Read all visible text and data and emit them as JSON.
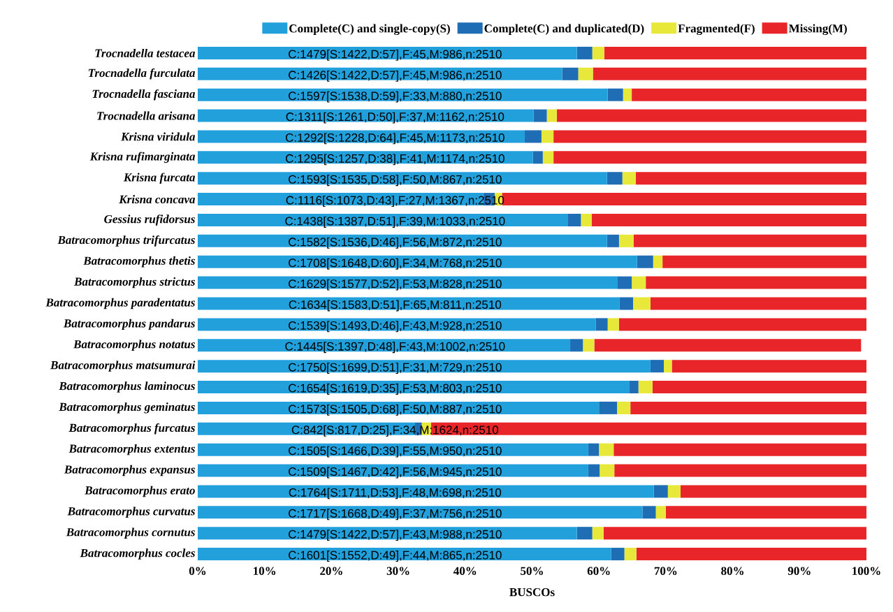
{
  "chart_data": {
    "type": "bar",
    "orientation": "horizontal",
    "stacked": true,
    "xlabel": "BUSCOs",
    "legend": "top",
    "categories": [
      "Trocnadella testacea",
      "Trocnadella furculata",
      "Trocnadella fasciana",
      "Trocnadella arisana",
      "Krisna viridula",
      "Krisna rufimarginata",
      "Krisna furcata",
      "Krisna concava",
      "Gessius rufidorsus",
      "Batracomorphus trifurcatus",
      "Batracomorphus thetis",
      "Batracomorphus strictus",
      "Batracomorphus paradentatus",
      "Batracomorphus pandarus",
      "Batracomorphus notatus",
      "Batracomorphus matsumurai",
      "Batracomorphus laminocus",
      "Batracomorphus geminatus",
      "Batracomorphus furcatus",
      "Batracomorphus extentus",
      "Batracomorphus expansus",
      "Batracomorphus erato",
      "Batracomorphus curvatus",
      "Batracomorphus cornutus",
      "Batracomorphus cocles"
    ],
    "series": [
      {
        "name": "Complete(C) and single-copy(S)",
        "color": "#22a0dc",
        "values": [
          56.7,
          54.5,
          61.3,
          50.2,
          48.9,
          50.1,
          61.2,
          42.7,
          55.3,
          61.2,
          65.7,
          62.8,
          63.1,
          59.5,
          55.7,
          67.7,
          64.5,
          60.0,
          32.5,
          58.4,
          58.4,
          68.2,
          66.5,
          56.7,
          61.8
        ]
      },
      {
        "name": "Complete(C) and duplicated(D)",
        "color": "#1f6db5",
        "values": [
          2.3,
          2.4,
          2.3,
          2.0,
          2.5,
          1.5,
          2.3,
          1.7,
          2.0,
          1.8,
          2.4,
          2.1,
          2.0,
          1.8,
          1.9,
          2.0,
          1.4,
          2.7,
          1.0,
          1.6,
          1.7,
          2.1,
          2.0,
          2.3,
          2.0
        ]
      },
      {
        "name": "Fragmented(F)",
        "color": "#e8e83a",
        "values": [
          1.8,
          2.2,
          1.3,
          1.5,
          1.8,
          1.6,
          2.0,
          1.1,
          1.6,
          2.2,
          1.4,
          2.1,
          2.6,
          1.7,
          1.7,
          1.2,
          2.1,
          2.0,
          1.4,
          2.2,
          2.2,
          1.9,
          1.5,
          1.7,
          1.8
        ]
      },
      {
        "name": "Missing(M)",
        "color": "#e8262a",
        "values": [
          39.2,
          40.9,
          35.1,
          46.3,
          46.8,
          46.8,
          34.5,
          54.5,
          41.1,
          34.8,
          30.5,
          33.0,
          32.3,
          37.0,
          39.9,
          29.1,
          32.0,
          35.3,
          65.1,
          37.8,
          37.7,
          27.8,
          30.0,
          39.3,
          34.4
        ]
      }
    ],
    "xlim": [
      0,
      100
    ],
    "xticks": [
      {
        "value": 0,
        "label": "0%"
      },
      {
        "value": 10,
        "label": "10%"
      },
      {
        "value": 20,
        "label": "20%"
      },
      {
        "value": 30,
        "label": "30%"
      },
      {
        "value": 40,
        "label": "40%"
      },
      {
        "value": 50,
        "label": "50%"
      },
      {
        "value": 60,
        "label": "60%"
      },
      {
        "value": 70,
        "label": "70%"
      },
      {
        "value": 80,
        "label": "80%"
      },
      {
        "value": 90,
        "label": "90%"
      },
      {
        "value": 100,
        "label": "100%"
      }
    ],
    "annotations": [
      "C:1479[S:1422,D:57],F:45,M:986,n:2510",
      "C:1426[S:1422,D:57],F:45,M:986,n:2510",
      "C:1597[S:1538,D:59],F:33,M:880,n:2510",
      "C:1311[S:1261,D:50],F:37,M:1162,n:2510",
      "C:1292[S:1228,D:64],F:45,M:1173,n:2510",
      "C:1295[S:1257,D:38],F:41,M:1174,n:2510",
      "C:1593[S:1535,D:58],F:50,M:867,n:2510",
      "C:1116[S:1073,D:43],F:27,M:1367,n:2510",
      "C:1438[S:1387,D:51],F:39,M:1033,n:2510",
      "C:1582[S:1536,D:46],F:56,M:872,n:2510",
      "C:1708[S:1648,D:60],F:34,M:768,n:2510",
      "C:1629[S:1577,D:52],F:53,M:828,n:2510",
      "C:1634[S:1583,D:51],F:65,M:811,n:2510",
      "C:1539[S:1493,D:46],F:43,M:928,n:2510",
      "C:1445[S:1397,D:48],F:43,M:1002,n:2510",
      "C:1750[S:1699,D:51],F:31,M:729,n:2510",
      "C:1654[S:1619,D:35],F:53,M:803,n:2510",
      "C:1573[S:1505,D:68],F:50,M:887,n:2510",
      "C:842[S:817,D:25],F:34,M:1624,n:2510",
      "C:1505[S:1466,D:39],F:55,M:950,n:2510",
      "C:1509[S:1467,D:42],F:56,M:945,n:2510",
      "C:1764[S:1711,D:53],F:48,M:698,n:2510",
      "C:1717[S:1668,D:49],F:37,M:756,n:2510",
      "C:1479[S:1422,D:57],F:43,M:988,n:2510",
      "C:1601[S:1552,D:49],F:44,M:865,n:2510"
    ]
  }
}
